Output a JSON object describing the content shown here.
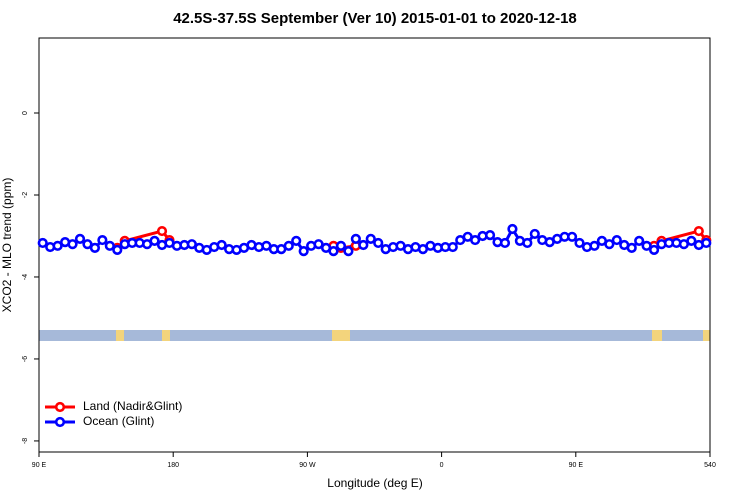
{
  "chart_data": {
    "type": "line",
    "title": "42.5S-37.5S September (Ver 10)   2015-01-01 to 2020-12-18",
    "x_label": "Longitude (deg E)",
    "y_label": "XCO2 - MLO trend (ppm)",
    "xlim": [
      90,
      540
    ],
    "ylim": [
      -8.27,
      1.83
    ],
    "xticks": [
      {
        "value": 90,
        "label": "90 E"
      },
      180,
      {
        "value": 270,
        "label": "90 W"
      },
      {
        "value": 360,
        "label": "0"
      },
      {
        "value": 450,
        "label": "90 E"
      },
      540
    ],
    "yticks": [
      0,
      -2,
      -4,
      -6,
      -8
    ],
    "legend": "bottomleft",
    "series": [
      {
        "name": "Land (Nadir&Glint)",
        "color": "#ff0000",
        "x": [
          142.5,
          147.5,
          172.5,
          177.5,
          182.5,
          287.5,
          292.5,
          302.5,
          307.5,
          502.5,
          507.5,
          532.5,
          537.5
        ],
        "values": [
          -3.29,
          -3.12,
          -2.88,
          -3.1,
          null,
          -3.24,
          -3.29,
          -3.24,
          null,
          -3.24,
          -3.12,
          -2.88,
          -3.1
        ]
      },
      {
        "name": "Ocean (Glint)",
        "color": "#0000ff",
        "x": [
          92.5,
          97.5,
          102.5,
          107.5,
          112.5,
          117.5,
          122.5,
          127.5,
          132.5,
          137.5,
          142.5,
          147.5,
          152.5,
          157.5,
          162.5,
          167.5,
          172.5,
          177.5,
          182.5,
          187.5,
          192.5,
          197.5,
          202.5,
          207.5,
          212.5,
          217.5,
          222.5,
          227.5,
          232.5,
          237.5,
          242.5,
          247.5,
          252.5,
          257.5,
          262.5,
          267.5,
          272.5,
          277.5,
          282.5,
          287.5,
          292.5,
          297.5,
          302.5,
          307.5,
          312.5,
          317.5,
          322.5,
          327.5,
          332.5,
          337.5,
          342.5,
          347.5,
          352.5,
          357.5,
          362.5,
          367.5,
          372.5,
          377.5,
          382.5,
          387.5,
          392.5,
          397.5,
          402.5,
          407.5,
          412.5,
          417.5,
          422.5,
          427.5,
          432.5,
          437.5,
          442.5,
          447.5,
          452.5,
          457.5,
          462.5,
          467.5,
          472.5,
          477.5,
          482.5,
          487.5,
          492.5,
          497.5,
          502.5,
          507.5,
          512.5,
          517.5,
          522.5,
          527.5,
          532.5,
          537.5
        ],
        "values": [
          -3.17,
          -3.27,
          -3.24,
          -3.15,
          -3.2,
          -3.07,
          -3.2,
          -3.29,
          -3.1,
          -3.24,
          -3.34,
          -3.2,
          -3.17,
          -3.17,
          -3.2,
          -3.12,
          -3.22,
          -3.17,
          -3.24,
          -3.22,
          -3.2,
          -3.29,
          -3.34,
          -3.27,
          -3.22,
          -3.32,
          -3.34,
          -3.29,
          -3.22,
          -3.27,
          -3.24,
          -3.32,
          -3.32,
          -3.24,
          -3.12,
          -3.37,
          -3.24,
          -3.2,
          -3.29,
          -3.37,
          -3.24,
          -3.37,
          -3.07,
          -3.22,
          -3.07,
          -3.17,
          -3.32,
          -3.27,
          -3.24,
          -3.32,
          -3.27,
          -3.32,
          -3.24,
          -3.29,
          -3.27,
          -3.27,
          -3.1,
          -3.02,
          -3.1,
          -3.0,
          -2.98,
          -3.15,
          -3.17,
          -2.83,
          -3.12,
          -3.17,
          -2.95,
          -3.1,
          -3.15,
          -3.07,
          -3.02,
          -3.02,
          -3.17,
          -3.27,
          -3.24,
          -3.12,
          -3.2,
          -3.1,
          -3.22,
          -3.29,
          -3.12,
          -3.24,
          -3.34,
          -3.2,
          -3.17,
          -3.17,
          -3.2,
          -3.12,
          -3.22,
          -3.17
        ]
      }
    ]
  }
}
